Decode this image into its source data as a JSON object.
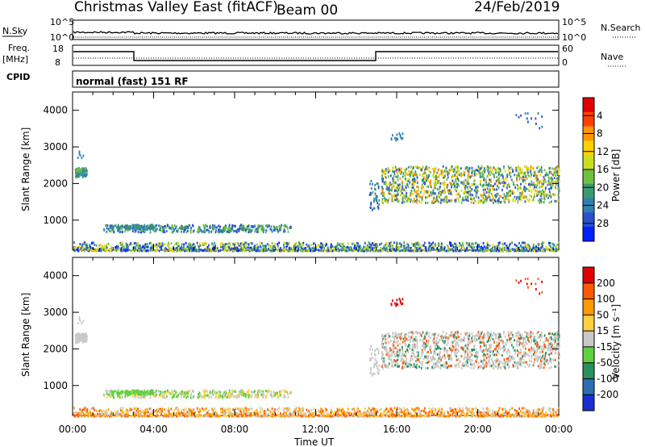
{
  "header": {
    "title": "Christmas Valley East (fitACF)",
    "beam": "Beam 00",
    "date": "24/Feb/2019"
  },
  "strips": {
    "nsky": {
      "label": "N.Sky",
      "ytick_top": "10^5",
      "ytick_bottom": "10^0",
      "right_label": "N.Search",
      "right_tick_top": "10^5",
      "right_tick_bottom": "10^0"
    },
    "freq": {
      "label_line1": "Freq.",
      "label_line2": "[MHz]",
      "ytick_top": "18",
      "ytick_bottom": "8",
      "right_label": "Nave",
      "right_tick_top": "60",
      "right_tick_bottom": "0"
    },
    "cpid": {
      "label": "CPID",
      "text": "normal (fast) 151 RF"
    }
  },
  "chart_data": [
    {
      "type": "heatmap",
      "name": "power",
      "ylabel": "Slant Range [km]",
      "xlabel": "Time UT",
      "x_range_hours": [
        0,
        24
      ],
      "ylim": [
        180,
        4500
      ],
      "yticks": [
        "1000",
        "2000",
        "3000",
        "4000"
      ],
      "colorbar": {
        "label": "Power [dB]",
        "ticks": [
          "4",
          "8",
          "12",
          "16",
          "20",
          "24",
          "28"
        ],
        "colors": [
          "#0020ff",
          "#2a4fd0",
          "#2f7fb0",
          "#3a9a70",
          "#6fbf40",
          "#c8e020",
          "#ffd000",
          "#ff9500",
          "#ff4000",
          "#e00000"
        ]
      }
    },
    {
      "type": "heatmap",
      "name": "velocity",
      "ylabel": "Slant Range [km]",
      "xlabel": "Time UT",
      "x_range_hours": [
        0,
        24
      ],
      "ylim": [
        180,
        4500
      ],
      "yticks": [
        "1000",
        "2000",
        "3000",
        "4000"
      ],
      "colorbar": {
        "label": "Velocity [m s⁻¹]",
        "ticks": [
          "200",
          "100",
          "50",
          "15",
          "-15",
          "-50",
          "-100",
          "-200"
        ],
        "colors": [
          "#1a2fd0",
          "#2a6fb0",
          "#2a9060",
          "#5fd040",
          "#c8c8c8",
          "#ffd040",
          "#ff9a00",
          "#ff5a00",
          "#e00000"
        ]
      }
    }
  ],
  "xaxis": {
    "ticks": [
      "00:00",
      "04:00",
      "08:00",
      "12:00",
      "16:00",
      "20:00",
      "00:00"
    ],
    "label": "Time UT"
  }
}
